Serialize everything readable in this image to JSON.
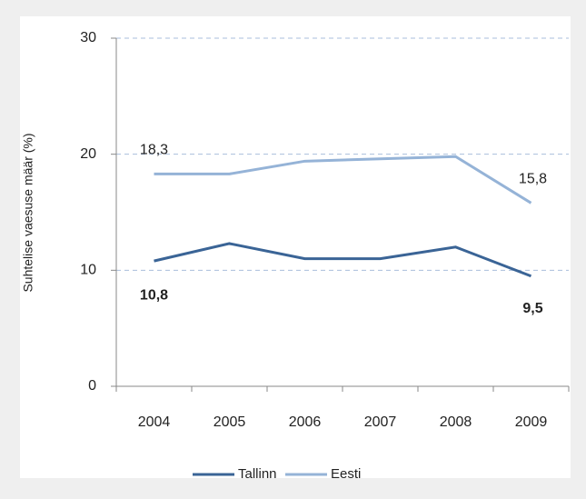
{
  "chart_data": {
    "type": "line",
    "y_label": "Suhtelise vaesuse määr (%)",
    "categories": [
      "2004",
      "2005",
      "2006",
      "2007",
      "2008",
      "2009"
    ],
    "series": [
      {
        "name": "Tallinn",
        "color": "#3a6496",
        "values": [
          10.8,
          12.3,
          11.0,
          11.0,
          12.0,
          9.5
        ],
        "value_labels": [
          "10,8",
          null,
          null,
          null,
          null,
          "9,5"
        ]
      },
      {
        "name": "Eesti",
        "color": "#95b3d7",
        "values": [
          18.3,
          18.3,
          19.4,
          19.6,
          19.8,
          15.8
        ],
        "value_labels": [
          "18,3",
          null,
          null,
          null,
          null,
          "15,8"
        ]
      }
    ],
    "ylim": [
      0,
      30
    ],
    "yticks": [
      0,
      10,
      20,
      30
    ],
    "grid": true,
    "legend": "bottom"
  }
}
